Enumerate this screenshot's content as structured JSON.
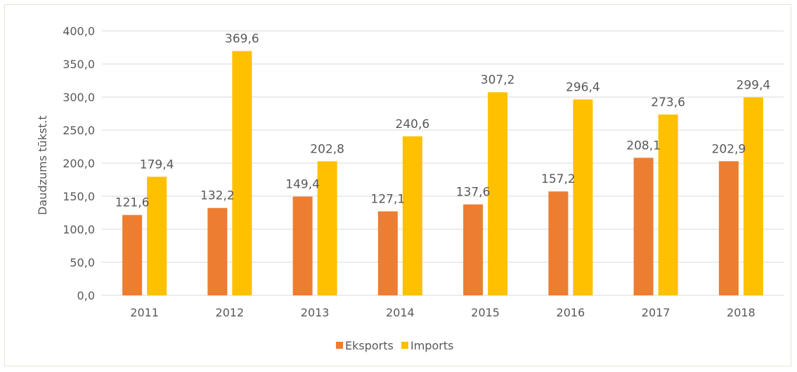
{
  "chart_data": {
    "type": "bar",
    "categories": [
      "2011",
      "2012",
      "2013",
      "2014",
      "2015",
      "2016",
      "2017",
      "2018"
    ],
    "series": [
      {
        "name": "Eksports",
        "color": "#ed7d31",
        "values": [
          121.6,
          132.2,
          149.4,
          127.1,
          137.6,
          157.2,
          208.1,
          202.9
        ],
        "labels": [
          "121,6",
          "132,2",
          "149,4",
          "127,1",
          "137,6",
          "157,2",
          "208,1",
          "202,9"
        ]
      },
      {
        "name": "Imports",
        "color": "#ffc000",
        "values": [
          179.4,
          369.6,
          202.8,
          240.6,
          307.2,
          296.4,
          273.6,
          299.4
        ],
        "labels": [
          "179,4",
          "369,6",
          "202,8",
          "240,6",
          "307,2",
          "296,4",
          "273,6",
          "299,4"
        ]
      }
    ],
    "ylabel": "Daudzums tūkst.t",
    "ylim": [
      0,
      400
    ],
    "yticks": [
      0,
      50,
      100,
      150,
      200,
      250,
      300,
      350,
      400
    ],
    "ytick_labels": [
      "0,0",
      "50,0",
      "100,0",
      "150,0",
      "200,0",
      "250,0",
      "300,0",
      "350,0",
      "400,0"
    ],
    "grid": true,
    "legend_position": "bottom"
  }
}
